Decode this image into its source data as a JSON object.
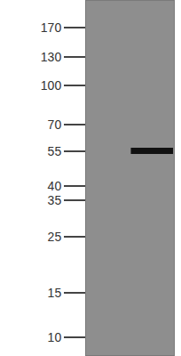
{
  "chart_data": {
    "type": "blot",
    "categories": [
      null,
      null
    ],
    "values": [
      null,
      55
    ],
    "log": "y",
    "ylim": [
      8.5,
      217
    ],
    "yticks": [
      170,
      130,
      100,
      70,
      55,
      40,
      35,
      25,
      15,
      10
    ],
    "tick_labels": "y",
    "color": "#111111"
  }
}
